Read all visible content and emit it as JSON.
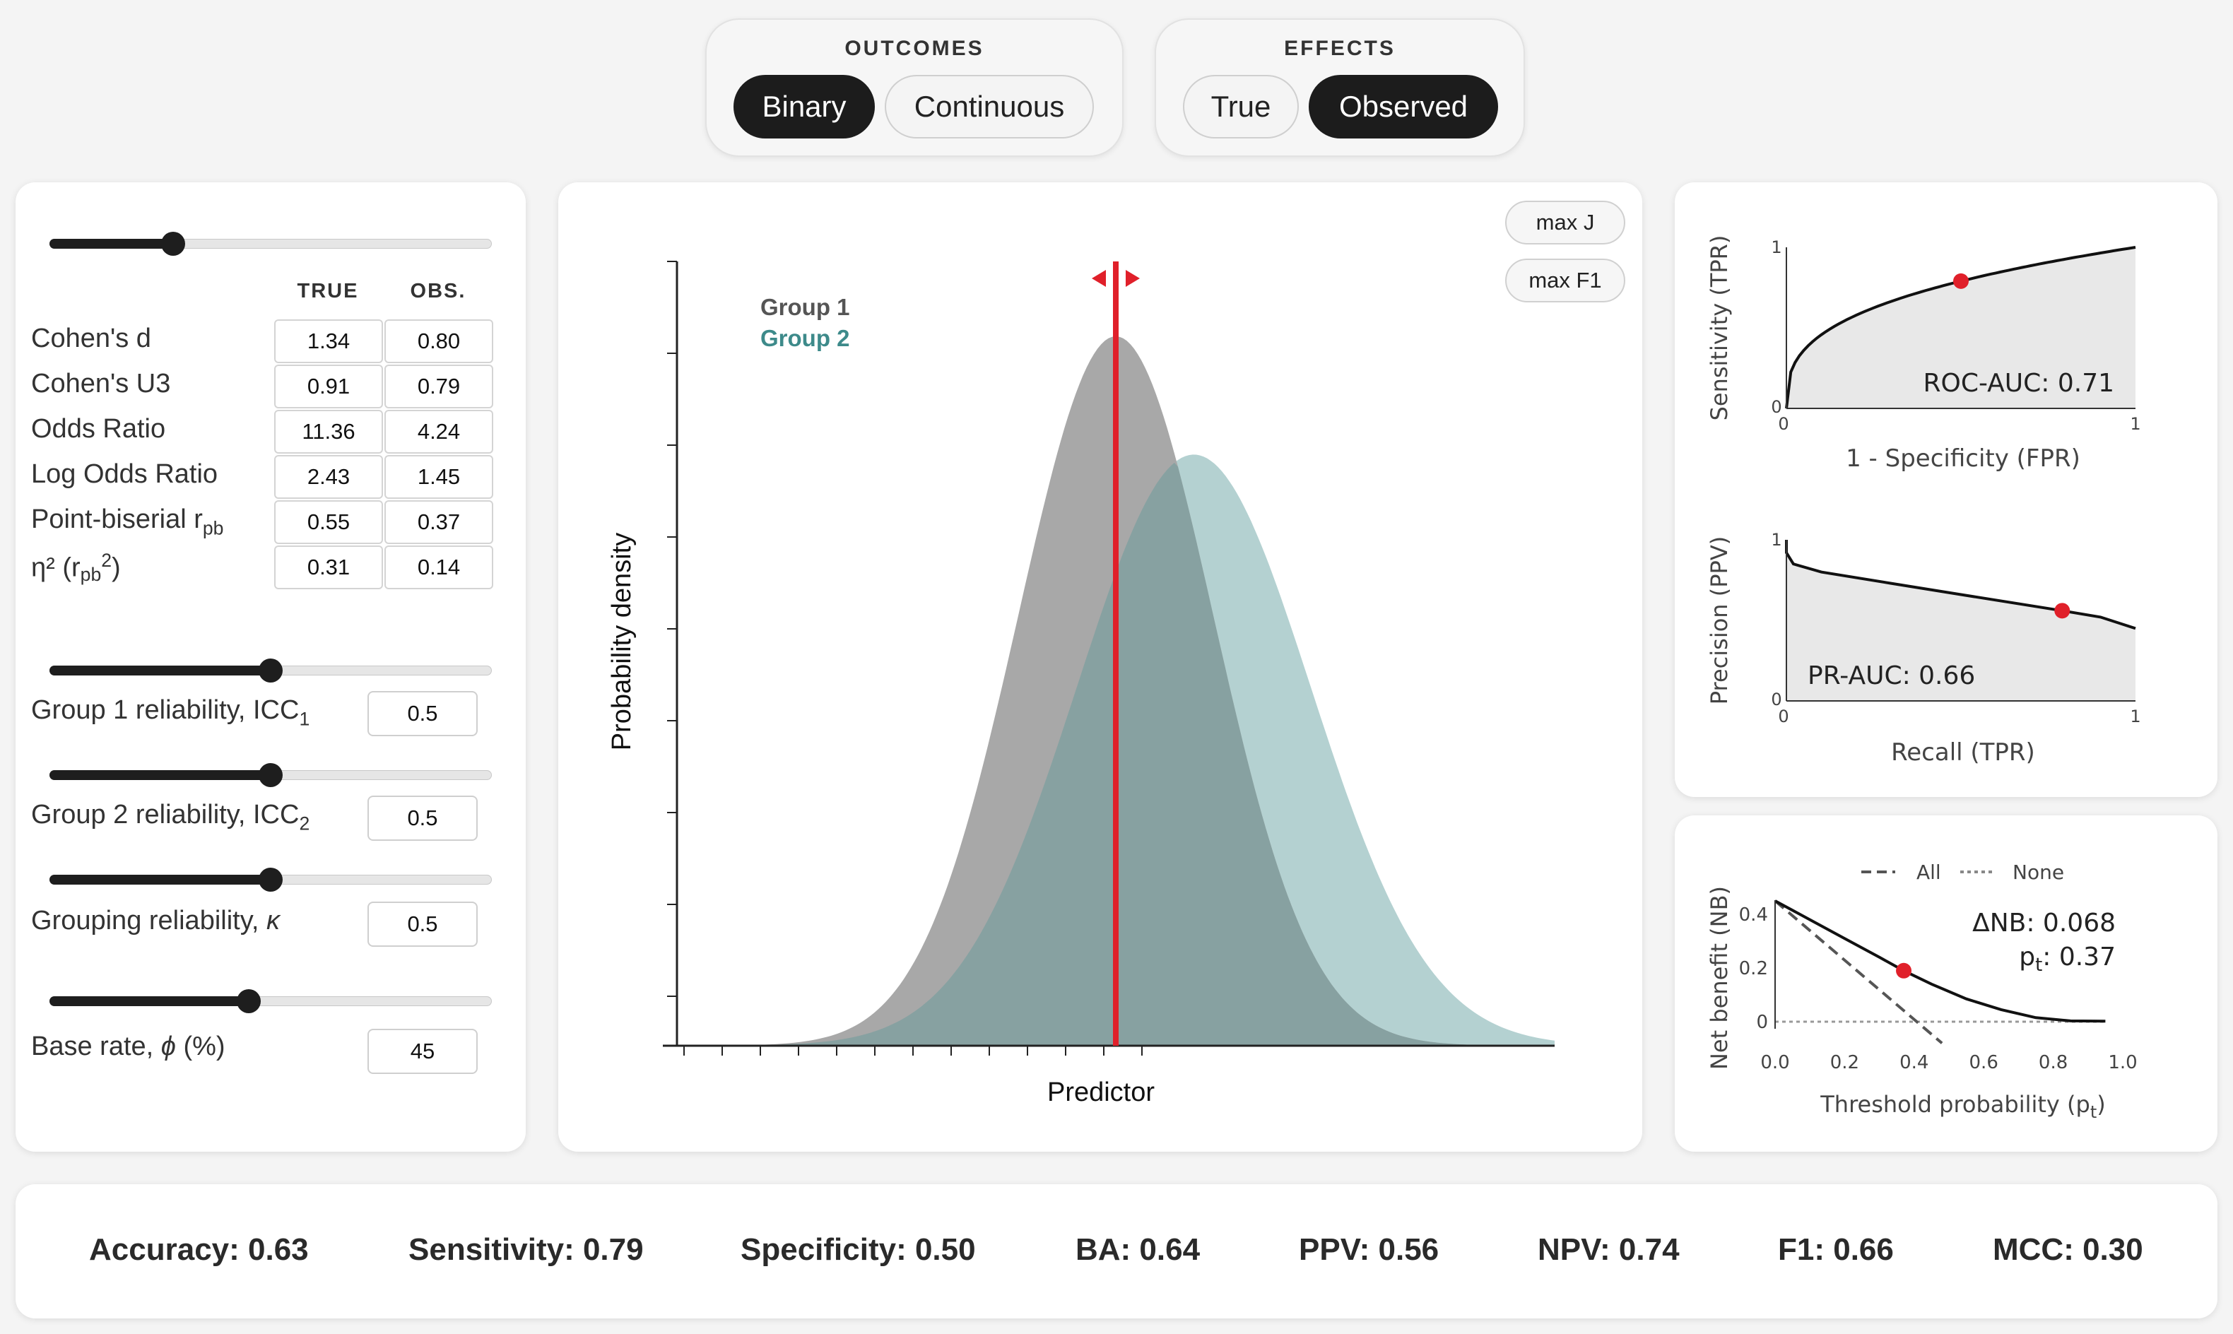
{
  "outcomes": {
    "title": "OUTCOMES",
    "options": [
      "Binary",
      "Continuous"
    ],
    "selected": "Binary"
  },
  "effects": {
    "title": "EFFECTS",
    "options": [
      "True",
      "Observed"
    ],
    "selected": "Observed"
  },
  "effect_table": {
    "col_true": "TRUE",
    "col_obs": "OBS.",
    "rows": [
      {
        "label": "Cohen's d",
        "true": "1.34",
        "obs": "0.80"
      },
      {
        "label": "Cohen's U3",
        "true": "0.91",
        "obs": "0.79"
      },
      {
        "label": "Odds Ratio",
        "true": "11.36",
        "obs": "4.24"
      },
      {
        "label": "Log Odds Ratio",
        "true": "2.43",
        "obs": "1.45"
      },
      {
        "label": "Point-biserial r",
        "label_sub": "pb",
        "true": "0.55",
        "obs": "0.37"
      },
      {
        "label": "η² (r",
        "label_sub": "pb",
        "label_sup": "2",
        "label_end": ")",
        "true": "0.31",
        "obs": "0.14"
      }
    ]
  },
  "sliders": {
    "effect_size": 0.28,
    "group1_reliability": 0.5,
    "group2_reliability": 0.5,
    "grouping_reliability": 0.5,
    "base_rate": 0.45
  },
  "reliability": {
    "group1": {
      "label": "Group 1 reliability, ICC",
      "sub": "1",
      "value": "0.5"
    },
    "group2": {
      "label": "Group 2 reliability, ICC",
      "sub": "2",
      "value": "0.5"
    },
    "grouping": {
      "label": "Grouping reliability, ",
      "italic": "κ",
      "value": "0.5"
    },
    "base_rate": {
      "label": "Base rate, ",
      "italic": "ϕ",
      "label_end": " (%)",
      "value": "45"
    }
  },
  "buttons": {
    "max_j": "max J",
    "max_f1": "max F1"
  },
  "density_chart": {
    "ylabel": "Probability density",
    "xlabel": "Predictor",
    "legend": [
      {
        "name": "Group 1",
        "color": "#555555"
      },
      {
        "name": "Group 2",
        "color": "#3d8a8a"
      }
    ],
    "colors": {
      "group1_fill": "#a8a8a8",
      "group2_fill": "#b4d1d1",
      "overlap": "#87a1a1",
      "threshold": "#e0202a"
    }
  },
  "chart_data": [
    {
      "type": "area",
      "name": "density",
      "series": [
        {
          "name": "Group 1",
          "mean": 0.0,
          "sd": 1.0
        },
        {
          "name": "Group 2",
          "mean": 0.8,
          "sd": 1.2
        }
      ],
      "threshold": 0.0,
      "xlim": [
        -4.5,
        4.5
      ]
    },
    {
      "type": "line",
      "name": "roc",
      "xlabel": "1 - Specificity (FPR)",
      "ylabel": "Sensitivity (TPR)",
      "xlim": [
        0,
        1
      ],
      "ylim": [
        0,
        1
      ],
      "tick_labels": [
        "0",
        "1",
        "1",
        "0"
      ],
      "annotation": "ROC-AUC: 0.71",
      "point": {
        "x": 0.5,
        "y": 0.79
      }
    },
    {
      "type": "line",
      "name": "pr",
      "xlabel": "Recall (TPR)",
      "ylabel": "Precision (PPV)",
      "xlim": [
        0,
        1
      ],
      "ylim": [
        0,
        1
      ],
      "tick_labels": [
        "0",
        "1",
        "1",
        "0"
      ],
      "annotation": "PR-AUC: 0.66",
      "x": [
        0.0,
        0.02,
        0.1,
        0.3,
        0.5,
        0.79,
        0.9,
        1.0
      ],
      "y": [
        0.92,
        0.85,
        0.8,
        0.73,
        0.66,
        0.56,
        0.52,
        0.45
      ],
      "point": {
        "x": 0.79,
        "y": 0.56
      }
    },
    {
      "type": "line",
      "name": "net_benefit",
      "xlabel": "Threshold probability (p",
      "xlabel_sub": "t",
      "xlabel_end": ")",
      "ylabel": "Net benefit (NB)",
      "legend": [
        "All",
        "None"
      ],
      "xticks": [
        "0.0",
        "0.2",
        "0.4",
        "0.6",
        "0.8",
        "1.0"
      ],
      "yticks": [
        "0",
        "0.2",
        "0.4"
      ],
      "annotation_delta": "ΔNB: 0.068",
      "annotation_pt": "p",
      "annotation_pt_sub": "t",
      "annotation_pt_end": ": 0.37",
      "x": [
        0.0,
        0.1,
        0.2,
        0.3,
        0.37,
        0.45,
        0.55,
        0.65,
        0.75,
        0.85,
        0.95
      ],
      "y": [
        0.45,
        0.38,
        0.31,
        0.24,
        0.19,
        0.14,
        0.085,
        0.045,
        0.015,
        0.003,
        0.002
      ],
      "all_x": [
        0.0,
        0.48
      ],
      "all_y": [
        0.45,
        -0.08
      ],
      "point": {
        "x": 0.37,
        "y": 0.19
      }
    }
  ],
  "stats": [
    "Accuracy: 0.63",
    "Sensitivity: 0.79",
    "Specificity: 0.50",
    "BA: 0.64",
    "PPV: 0.56",
    "NPV: 0.74",
    "F1: 0.66",
    "MCC: 0.30"
  ]
}
